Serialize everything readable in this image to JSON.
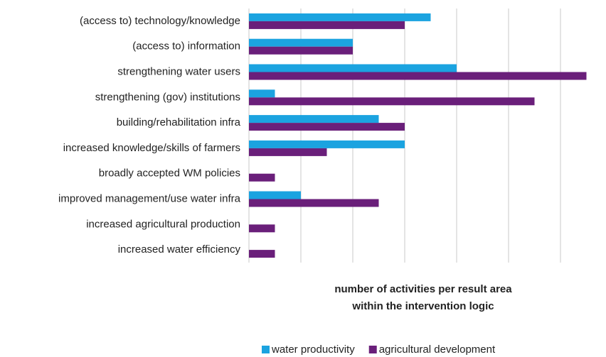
{
  "chart_data": {
    "type": "bar",
    "orientation": "horizontal",
    "categories": [
      "(access to) technology/knowledge",
      "(access to) information",
      "strengthening water users",
      "strengthening  (gov) institutions",
      "building/rehabilitation infra",
      "increased knowledge/skills of farmers",
      "broadly accepted WM policies",
      "improved management/use water infra",
      "increased  agricultural production",
      "increased water efficiency"
    ],
    "series": [
      {
        "name": "water productivity",
        "color": "#1ba3e0",
        "values": [
          7,
          4,
          8,
          1,
          5,
          6,
          0,
          2,
          0,
          0
        ]
      },
      {
        "name": "agricultural development",
        "color": "#6a1f7a",
        "values": [
          6,
          4,
          13,
          11,
          6,
          3,
          1,
          5,
          1,
          1
        ]
      }
    ],
    "x_label_lines": [
      "number of activities per result area",
      "within the intervention logic"
    ],
    "xlim": [
      0,
      13
    ],
    "xticks": [
      0,
      2,
      4,
      6,
      8,
      10,
      12
    ],
    "grid": true,
    "legend": "bottom"
  }
}
